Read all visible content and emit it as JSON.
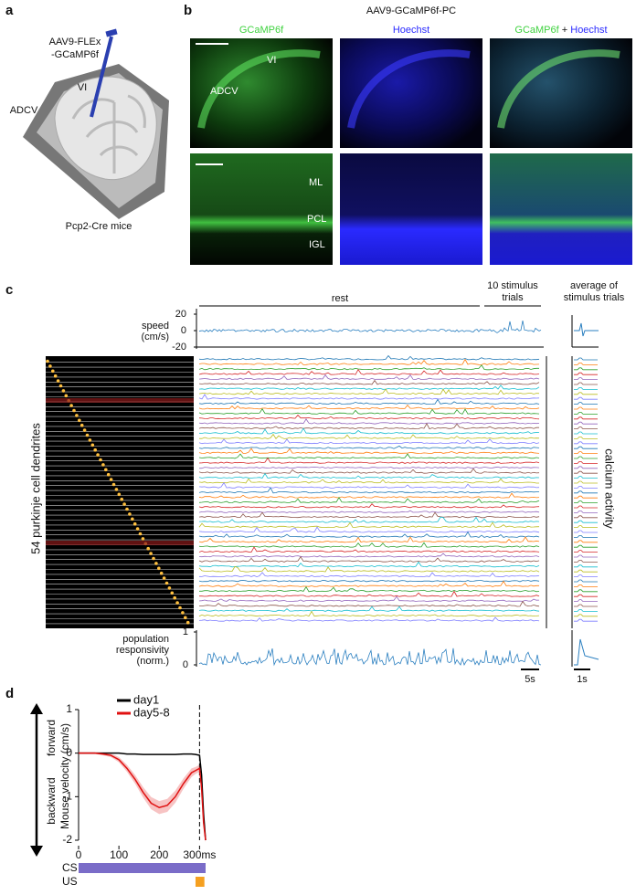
{
  "panel_a": {
    "label": "a",
    "injection": [
      "AAV9-FLEx",
      "-GCaMP6f"
    ],
    "region_vi": "VI",
    "region_adcv": "ADCV",
    "mice": "Pcp2-Cre mice"
  },
  "panel_b": {
    "label": "b",
    "title": "AAV9-GCaMP6f-PC",
    "col1": "GCaMP6f",
    "col2": "Hoechst",
    "col3": [
      "GCaMP6f",
      "+",
      "Hoechst"
    ],
    "top_labels": [
      "VI",
      "ADCV"
    ],
    "layers": [
      "ML",
      "PCL",
      "IGL"
    ]
  },
  "panel_c": {
    "label": "c",
    "rest": "rest",
    "stimulus": [
      "10 stimulus",
      "trials"
    ],
    "average": [
      "average of",
      "stimulus trials"
    ],
    "speed_label": [
      "speed",
      "(cm/s)"
    ],
    "speed_yticks": [
      20,
      0,
      -20
    ],
    "ylabel": "54 purkinje cell dendrites",
    "right_label": "calcium activity",
    "pop_label": [
      "population",
      "responsivity",
      "(norm.)"
    ],
    "pop_yticks": [
      1,
      0
    ],
    "scale_main": "5s",
    "scale_avg": "1s"
  },
  "chart_data": {
    "type": "line",
    "label": "d",
    "x": [
      0,
      20,
      40,
      60,
      80,
      100,
      120,
      140,
      160,
      180,
      200,
      220,
      240,
      260,
      280,
      290,
      300,
      305,
      310,
      315
    ],
    "series": [
      {
        "name": "day1",
        "color": "#000000",
        "values": [
          0,
          0,
          0,
          0,
          0,
          0,
          -0.02,
          -0.02,
          -0.03,
          -0.03,
          -0.03,
          -0.03,
          -0.03,
          -0.02,
          -0.02,
          -0.03,
          -0.05,
          -0.5,
          -1.4,
          -2
        ]
      },
      {
        "name": "day5-8",
        "color": "#e01010",
        "values": [
          0,
          0,
          0,
          -0.02,
          -0.05,
          -0.15,
          -0.35,
          -0.6,
          -0.9,
          -1.15,
          -1.25,
          -1.2,
          -1.0,
          -0.7,
          -0.45,
          -0.4,
          -0.35,
          -0.8,
          -1.6,
          -2
        ],
        "errors": [
          0.02,
          0.02,
          0.02,
          0.03,
          0.04,
          0.06,
          0.08,
          0.1,
          0.12,
          0.14,
          0.15,
          0.15,
          0.14,
          0.12,
          0.1,
          0.08,
          0.08,
          0.1,
          0.1,
          0.05
        ]
      }
    ],
    "xlim": [
      0,
      315
    ],
    "ylim": [
      -2,
      1
    ],
    "xticks": [
      0,
      100,
      200,
      {
        "value": 300,
        "label": "300ms"
      }
    ],
    "yticks": [
      1,
      0,
      -1,
      -2
    ],
    "ylabel": "Mouse velocity (cm/s)",
    "forward": "forward",
    "backward": "backward",
    "vline": 300,
    "cs": "CS",
    "cs_range": [
      0,
      315
    ],
    "us": "US",
    "us_range": [
      290,
      312
    ]
  }
}
